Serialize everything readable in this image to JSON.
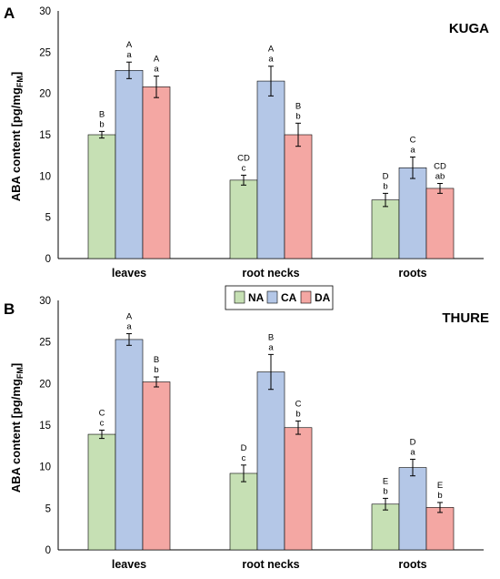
{
  "chart_data": [
    {
      "type": "bar",
      "panel": "A",
      "title": "KUGA",
      "ylabel": "ABA content [pg/mg",
      "ylabel_sub": "FM",
      "ylabel_close": "]",
      "ylim": [
        0,
        30
      ],
      "yticks": [
        "0",
        "5",
        "10",
        "15",
        "20",
        "25",
        "30"
      ],
      "categories": [
        "leaves",
        "root necks",
        "roots"
      ],
      "series": [
        {
          "name": "NA",
          "color": "#c6e0b4",
          "values": [
            15.0,
            9.5,
            7.1
          ],
          "errors": [
            0.4,
            0.6,
            0.8
          ],
          "sig_upper": [
            "B",
            "CD",
            "D"
          ],
          "sig_lower": [
            "b",
            "c",
            "b"
          ]
        },
        {
          "name": "CA",
          "color": "#b4c7e7",
          "values": [
            22.8,
            21.5,
            11.0
          ],
          "errors": [
            1.0,
            1.8,
            1.3
          ],
          "sig_upper": [
            "A",
            "A",
            "C"
          ],
          "sig_lower": [
            "a",
            "a",
            "a"
          ]
        },
        {
          "name": "DA",
          "color": "#f4a7a3",
          "values": [
            20.8,
            15.0,
            8.5
          ],
          "errors": [
            1.3,
            1.4,
            0.6
          ],
          "sig_upper": [
            "A",
            "B",
            "CD"
          ],
          "sig_lower": [
            "a",
            "b",
            "ab"
          ]
        }
      ]
    },
    {
      "type": "bar",
      "panel": "B",
      "title": "THURE",
      "ylabel": "ABA content [pg/mg",
      "ylabel_sub": "FM",
      "ylabel_close": "]",
      "ylim": [
        0,
        30
      ],
      "yticks": [
        "0",
        "5",
        "10",
        "15",
        "20",
        "25",
        "30"
      ],
      "categories": [
        "leaves",
        "root necks",
        "roots"
      ],
      "series": [
        {
          "name": "NA",
          "color": "#c6e0b4",
          "values": [
            13.9,
            9.2,
            5.5
          ],
          "errors": [
            0.5,
            1.0,
            0.7
          ],
          "sig_upper": [
            "C",
            "D",
            "E"
          ],
          "sig_lower": [
            "c",
            "c",
            "b"
          ]
        },
        {
          "name": "CA",
          "color": "#b4c7e7",
          "values": [
            25.3,
            21.4,
            9.9
          ],
          "errors": [
            0.7,
            2.1,
            1.0
          ],
          "sig_upper": [
            "A",
            "B",
            "D"
          ],
          "sig_lower": [
            "a",
            "a",
            "a"
          ]
        },
        {
          "name": "DA",
          "color": "#f4a7a3",
          "values": [
            20.2,
            14.7,
            5.1
          ],
          "errors": [
            0.6,
            0.8,
            0.6
          ],
          "sig_upper": [
            "B",
            "C",
            "E"
          ],
          "sig_lower": [
            "b",
            "b",
            "b"
          ]
        }
      ]
    }
  ],
  "legend": [
    {
      "label": "NA",
      "color": "#c6e0b4"
    },
    {
      "label": "CA",
      "color": "#b4c7e7"
    },
    {
      "label": "DA",
      "color": "#f4a7a3"
    }
  ]
}
